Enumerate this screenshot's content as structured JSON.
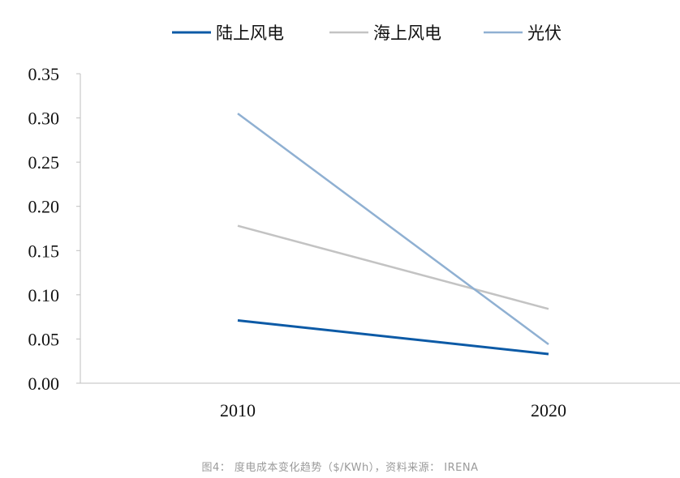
{
  "chart_data": {
    "type": "line",
    "x": [
      "2010",
      "2020"
    ],
    "series": [
      {
        "name": "陆上风电",
        "values": [
          0.071,
          0.033
        ],
        "color": "#0c5aa6"
      },
      {
        "name": "海上风电",
        "values": [
          0.178,
          0.084
        ],
        "color": "#c3c3c3"
      },
      {
        "name": "光伏",
        "values": [
          0.305,
          0.044
        ],
        "color": "#8fb0d2"
      }
    ],
    "ylim": [
      0,
      0.35
    ],
    "yticks": [
      "0.00",
      "0.05",
      "0.10",
      "0.15",
      "0.20",
      "0.25",
      "0.30",
      "0.35"
    ],
    "legend_position": "top",
    "grid": false
  },
  "caption": "图4：  度电成本变化趋势（$/KWh），资料来源：  IRENA"
}
